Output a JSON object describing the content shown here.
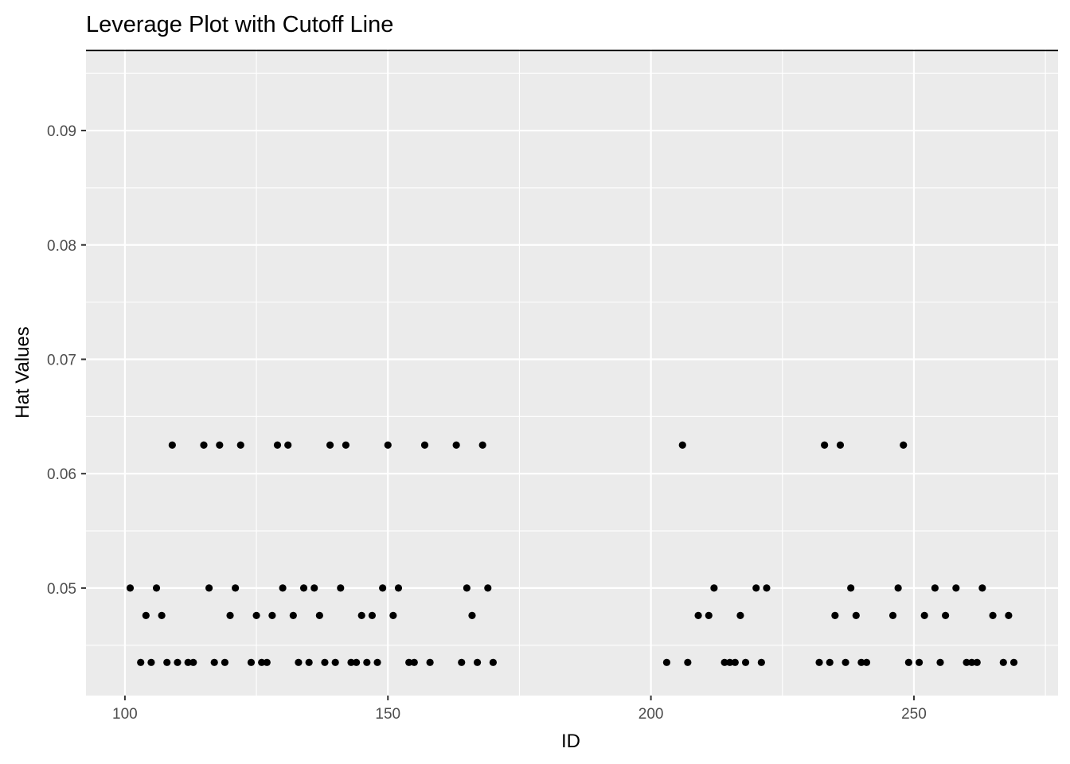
{
  "chart_data": {
    "type": "scatter",
    "title": "Leverage Plot with Cutoff Line",
    "xlabel": "ID",
    "ylabel": "Hat Values",
    "xlim": [
      92.6,
      277.4
    ],
    "ylim": [
      0.0406,
      0.0971
    ],
    "x_ticks": [
      100,
      150,
      200,
      250
    ],
    "x_tick_labels": [
      "100",
      "150",
      "200",
      "250"
    ],
    "x_minor_ticks": [
      125,
      175,
      225,
      275
    ],
    "y_ticks": [
      0.05,
      0.06,
      0.07,
      0.08,
      0.09
    ],
    "y_tick_labels": [
      "0.05",
      "0.06",
      "0.07",
      "0.08",
      "0.09"
    ],
    "y_minor_ticks": [
      0.045,
      0.055,
      0.065,
      0.075,
      0.085,
      0.095
    ],
    "cutoff_line": 0.097,
    "grid": true,
    "colors": {
      "panel": "#ebebeb",
      "grid": "#ffffff",
      "point": "#000000",
      "cutoff": "#000000"
    },
    "series": [
      {
        "x": [
          101,
          103,
          104,
          105,
          106,
          107,
          108,
          109,
          110,
          112,
          113,
          115,
          116,
          117,
          118,
          119,
          120,
          121,
          122,
          124,
          125,
          126,
          127,
          128,
          129,
          130,
          131,
          132,
          133,
          134,
          135,
          136,
          137,
          138,
          139,
          140,
          141,
          142,
          143,
          144,
          145,
          146,
          147,
          148,
          149,
          150,
          151,
          152,
          154,
          155,
          157,
          158,
          163,
          164,
          165,
          166,
          167,
          168,
          169,
          170,
          203,
          206,
          207,
          209,
          211,
          212,
          214,
          215,
          216,
          217,
          218,
          220,
          221,
          222,
          232,
          233,
          234,
          235,
          236,
          237,
          238,
          239,
          240,
          241,
          246,
          247,
          248,
          249,
          251,
          252,
          254,
          255,
          256,
          258,
          260,
          261,
          262,
          263,
          265,
          267,
          268,
          269
        ],
        "y": [
          0.05,
          0.0435,
          0.0476,
          0.0435,
          0.05,
          0.0476,
          0.0435,
          0.0625,
          0.0435,
          0.0435,
          0.0435,
          0.0625,
          0.05,
          0.0435,
          0.0625,
          0.0435,
          0.0476,
          0.05,
          0.0625,
          0.0435,
          0.0476,
          0.0435,
          0.0435,
          0.0476,
          0.0625,
          0.05,
          0.0625,
          0.0476,
          0.0435,
          0.05,
          0.0435,
          0.05,
          0.0476,
          0.0435,
          0.0625,
          0.0435,
          0.05,
          0.0625,
          0.0435,
          0.0435,
          0.0476,
          0.0435,
          0.0476,
          0.0435,
          0.05,
          0.0625,
          0.0476,
          0.05,
          0.0435,
          0.0435,
          0.0625,
          0.0435,
          0.0625,
          0.0435,
          0.05,
          0.0476,
          0.0435,
          0.0625,
          0.05,
          0.0435,
          0.0435,
          0.0625,
          0.0435,
          0.0476,
          0.0476,
          0.05,
          0.0435,
          0.0435,
          0.0435,
          0.0476,
          0.0435,
          0.05,
          0.0435,
          0.05,
          0.0435,
          0.0625,
          0.0435,
          0.0476,
          0.0625,
          0.0435,
          0.05,
          0.0476,
          0.0435,
          0.0435,
          0.0476,
          0.05,
          0.0625,
          0.0435,
          0.0435,
          0.0476,
          0.05,
          0.0435,
          0.0476,
          0.05,
          0.0435,
          0.0435,
          0.0435,
          0.05,
          0.0476,
          0.0435,
          0.0476,
          0.0435
        ]
      }
    ]
  }
}
